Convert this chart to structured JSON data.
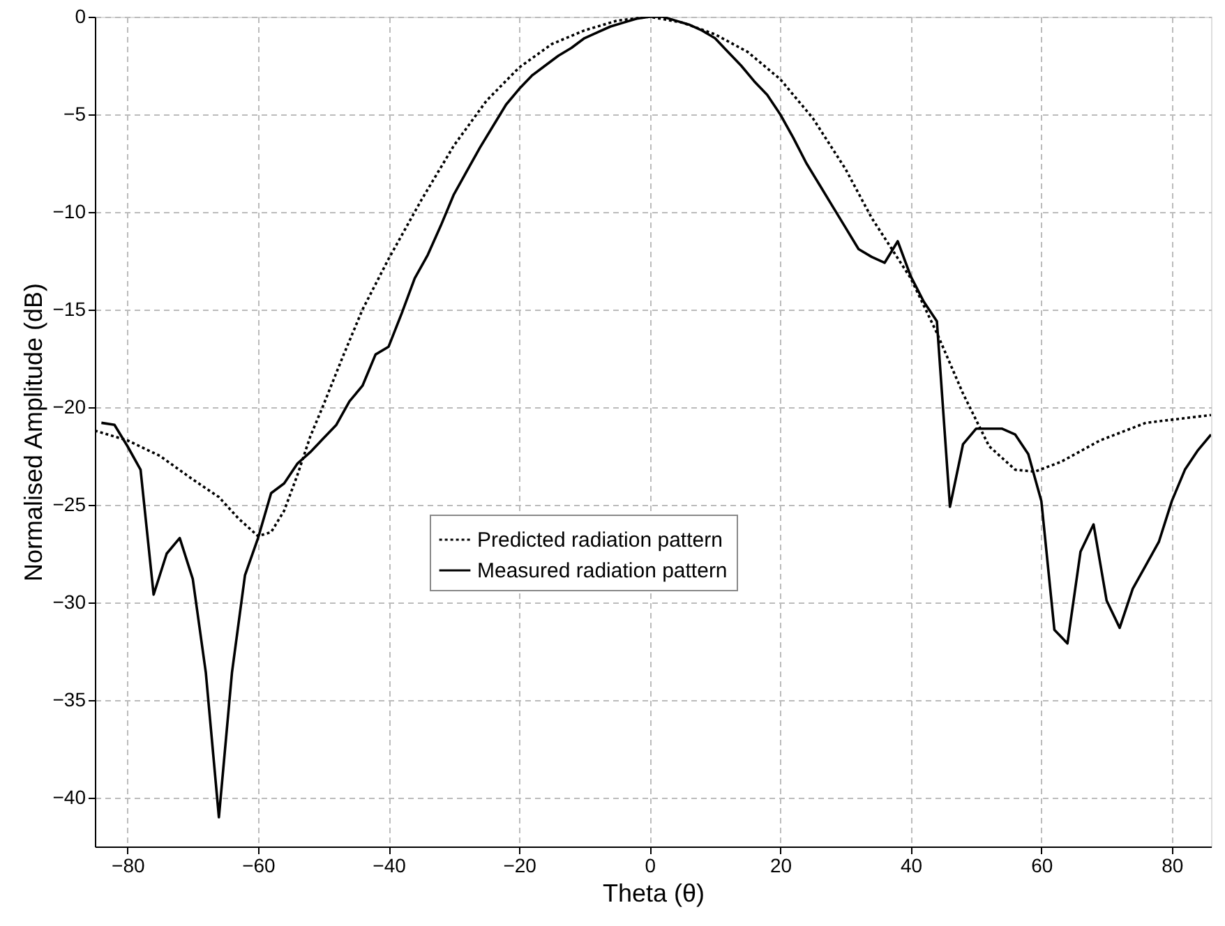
{
  "chart_data": {
    "type": "line",
    "xlabel": "Theta (θ)",
    "ylabel": "Normalised Amplitude (dB)",
    "xlim": [
      -85,
      86
    ],
    "ylim": [
      -42.5,
      0
    ],
    "xticks": [
      -80,
      -60,
      -40,
      -20,
      0,
      20,
      40,
      60,
      80
    ],
    "yticks": [
      0,
      -5,
      -10,
      -15,
      -20,
      -25,
      -30,
      -35,
      -40
    ],
    "grid": true,
    "legend": "center",
    "marker": "none",
    "series": [
      {
        "name": "Predicted radiation pattern",
        "color": "#000000",
        "line_style": "dotted",
        "x": [
          -85,
          -80,
          -75,
          -70,
          -66,
          -63,
          -60,
          -58,
          -56,
          -54,
          -52,
          -50,
          -47,
          -44,
          -40,
          -35,
          -30,
          -25,
          -20,
          -15,
          -10,
          -5,
          0,
          5,
          10,
          15,
          20,
          25,
          30,
          34,
          40,
          44,
          48,
          52,
          56,
          59,
          63,
          69,
          76,
          86
        ],
        "values": [
          -21.2,
          -21.7,
          -22.5,
          -23.7,
          -24.6,
          -25.7,
          -26.6,
          -26.4,
          -25.3,
          -23.5,
          -21.5,
          -19.9,
          -17.4,
          -15.0,
          -12.4,
          -9.4,
          -6.6,
          -4.3,
          -2.6,
          -1.4,
          -0.7,
          -0.2,
          0,
          -0.3,
          -0.9,
          -1.8,
          -3.2,
          -5.2,
          -7.8,
          -10.3,
          -13.4,
          -16.2,
          -19.3,
          -22.0,
          -23.2,
          -23.3,
          -22.8,
          -21.7,
          -20.8,
          -20.4
        ]
      },
      {
        "name": "Measured radiation pattern",
        "color": "#000000",
        "line_style": "solid",
        "x": [
          -84,
          -82,
          -80,
          -78,
          -76,
          -74,
          -72,
          -70,
          -68,
          -66,
          -64,
          -62,
          -60,
          -58,
          -56,
          -54,
          -52,
          -50,
          -48,
          -46,
          -44,
          -42,
          -40,
          -38,
          -36,
          -34,
          -32,
          -30,
          -28,
          -26,
          -24,
          -22,
          -20,
          -18,
          -16,
          -14,
          -12,
          -10,
          -8,
          -6,
          -4,
          -2,
          0,
          2,
          4,
          6,
          8,
          10,
          12,
          14,
          16,
          18,
          20,
          22,
          24,
          26,
          28,
          30,
          32,
          34,
          36,
          38,
          40,
          42,
          44,
          46,
          48,
          50,
          52,
          54,
          56,
          58,
          60,
          62,
          64,
          66,
          68,
          70,
          72,
          74,
          76,
          78,
          80,
          82,
          84,
          86
        ],
        "values": [
          -20.8,
          -20.9,
          -22.0,
          -23.2,
          -29.6,
          -27.5,
          -26.7,
          -28.8,
          -33.6,
          -41.0,
          -33.6,
          -28.6,
          -26.7,
          -24.4,
          -23.9,
          -22.9,
          -22.3,
          -21.6,
          -20.9,
          -19.7,
          -18.9,
          -17.3,
          -16.9,
          -15.2,
          -13.4,
          -12.2,
          -10.7,
          -9.1,
          -7.9,
          -6.7,
          -5.6,
          -4.5,
          -3.7,
          -3.0,
          -2.5,
          -2.0,
          -1.6,
          -1.1,
          -0.8,
          -0.5,
          -0.3,
          -0.1,
          0,
          0,
          -0.2,
          -0.4,
          -0.7,
          -1.1,
          -1.8,
          -2.5,
          -3.3,
          -4.0,
          -5.0,
          -6.2,
          -7.5,
          -8.6,
          -9.7,
          -10.8,
          -11.9,
          -12.3,
          -12.6,
          -11.5,
          -13.3,
          -14.6,
          -15.6,
          -25.1,
          -21.9,
          -21.1,
          -21.1,
          -21.1,
          -21.4,
          -22.4,
          -24.8,
          -31.4,
          -32.1,
          -27.4,
          -26.0,
          -29.9,
          -31.3,
          -29.3,
          -28.1,
          -26.9,
          -24.8,
          -23.2,
          -22.2,
          -21.4
        ]
      }
    ]
  }
}
